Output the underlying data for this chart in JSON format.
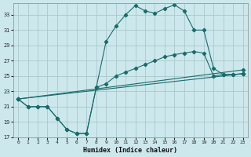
{
  "xlabel": "Humidex (Indice chaleur)",
  "bg_color": "#cce8ec",
  "grid_color": "#aac8cc",
  "line_color": "#1a6b6b",
  "xlim": [
    -0.5,
    23.5
  ],
  "ylim": [
    17,
    34.5
  ],
  "yticks": [
    17,
    19,
    21,
    23,
    25,
    27,
    29,
    31,
    33
  ],
  "xticks": [
    0,
    1,
    2,
    3,
    4,
    5,
    6,
    7,
    8,
    9,
    10,
    11,
    12,
    13,
    14,
    15,
    16,
    17,
    18,
    19,
    20,
    21,
    22,
    23
  ],
  "line1_x": [
    0,
    1,
    2,
    3,
    4,
    5,
    6,
    7,
    8,
    9,
    10,
    11,
    12,
    13,
    14,
    15,
    16,
    17,
    18,
    19,
    20,
    21,
    22,
    23
  ],
  "line1_y": [
    22.0,
    21.0,
    21.0,
    21.0,
    19.5,
    18.0,
    17.5,
    17.5,
    23.5,
    29.5,
    31.5,
    33.0,
    34.2,
    33.5,
    33.2,
    33.8,
    34.3,
    33.5,
    31.0,
    31.0,
    26.0,
    25.2,
    25.2,
    25.3
  ],
  "line2_x": [
    0,
    1,
    2,
    3,
    4,
    5,
    6,
    7,
    8,
    9,
    10,
    11,
    12,
    13,
    14,
    15,
    16,
    17,
    18,
    19,
    20,
    21,
    22,
    23
  ],
  "line2_y": [
    22.0,
    21.0,
    21.0,
    21.0,
    19.5,
    18.0,
    17.5,
    17.5,
    23.5,
    24.0,
    25.0,
    25.5,
    26.0,
    26.5,
    27.0,
    27.5,
    27.8,
    28.0,
    28.2,
    28.0,
    25.0,
    25.2,
    25.2,
    25.3
  ],
  "line3_x": [
    0,
    23
  ],
  "line3_y": [
    22.0,
    25.3
  ],
  "line4_x": [
    0,
    23
  ],
  "line4_y": [
    22.0,
    25.8
  ]
}
